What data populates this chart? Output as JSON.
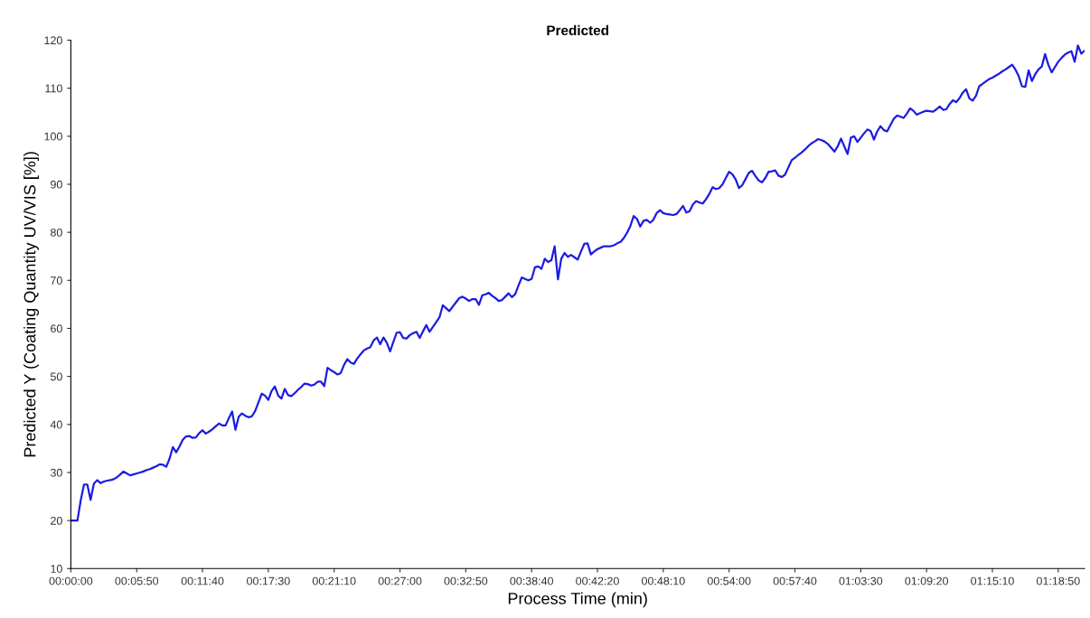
{
  "chart_data": {
    "type": "line",
    "title": "Predicted",
    "xlabel": "Process Time (min)",
    "ylabel": "Predicted Y (Coating Quantity UV/VIS [%])",
    "ylim": [
      10,
      120
    ],
    "yticks": [
      10,
      20,
      30,
      40,
      50,
      60,
      70,
      80,
      90,
      100,
      110,
      120
    ],
    "marker": "none",
    "line_style": "solid",
    "categories": [
      "00:00:00",
      null,
      null,
      null,
      null,
      null,
      null,
      null,
      null,
      null,
      null,
      null,
      null,
      null,
      null,
      null,
      null,
      null,
      null,
      null,
      "00:05:50",
      null,
      null,
      null,
      null,
      null,
      null,
      null,
      null,
      null,
      null,
      null,
      null,
      null,
      null,
      null,
      null,
      null,
      null,
      null,
      "00:11:40",
      null,
      null,
      null,
      null,
      null,
      null,
      null,
      null,
      null,
      null,
      null,
      null,
      null,
      null,
      null,
      null,
      null,
      null,
      null,
      "00:17:30",
      null,
      null,
      null,
      null,
      null,
      null,
      null,
      null,
      null,
      null,
      null,
      null,
      null,
      null,
      null,
      null,
      null,
      null,
      null,
      "00:21:10",
      null,
      null,
      null,
      null,
      null,
      null,
      null,
      null,
      null,
      null,
      null,
      null,
      null,
      null,
      null,
      null,
      null,
      null,
      null,
      "00:27:00",
      null,
      null,
      null,
      null,
      null,
      null,
      null,
      null,
      null,
      null,
      null,
      null,
      null,
      null,
      null,
      null,
      null,
      null,
      null,
      "00:32:50",
      null,
      null,
      null,
      null,
      null,
      null,
      null,
      null,
      null,
      null,
      null,
      null,
      null,
      null,
      null,
      null,
      null,
      null,
      null,
      "00:38:40",
      null,
      null,
      null,
      null,
      null,
      null,
      null,
      null,
      null,
      null,
      null,
      null,
      null,
      null,
      null,
      null,
      null,
      null,
      null,
      "00:42:20",
      null,
      null,
      null,
      null,
      null,
      null,
      null,
      null,
      null,
      null,
      null,
      null,
      null,
      null,
      null,
      null,
      null,
      null,
      null,
      "00:48:10",
      null,
      null,
      null,
      null,
      null,
      null,
      null,
      null,
      null,
      null,
      null,
      null,
      null,
      null,
      null,
      null,
      null,
      null,
      null,
      "00:54:00",
      null,
      null,
      null,
      null,
      null,
      null,
      null,
      null,
      null,
      null,
      null,
      null,
      null,
      null,
      null,
      null,
      null,
      null,
      null,
      "00:57:40",
      null,
      null,
      null,
      null,
      null,
      null,
      null,
      null,
      null,
      null,
      null,
      null,
      null,
      null,
      null,
      null,
      null,
      null,
      null,
      "01:03:30",
      null,
      null,
      null,
      null,
      null,
      null,
      null,
      null,
      null,
      null,
      null,
      null,
      null,
      null,
      null,
      null,
      null,
      null,
      null,
      "01:09:20",
      null,
      null,
      null,
      null,
      null,
      null,
      null,
      null,
      null,
      null,
      null,
      null,
      null,
      null,
      null,
      null,
      null,
      null,
      null,
      "01:15:10",
      null,
      null,
      null,
      null,
      null,
      null,
      null,
      null,
      null,
      null,
      null,
      null,
      null,
      null,
      null,
      null,
      null,
      null,
      null,
      "01:18:50",
      null,
      null,
      null,
      null,
      null,
      null,
      null,
      null
    ],
    "series": [
      {
        "color": "#1c1ce0",
        "values": [
          20.0,
          20.0,
          20.0,
          24.2,
          27.5,
          27.5,
          24.3,
          27.7,
          28.4,
          27.8,
          28.1,
          28.3,
          28.4,
          28.6,
          29.0,
          29.6,
          30.2,
          29.8,
          29.4,
          29.6,
          29.8,
          30.0,
          30.2,
          30.5,
          30.7,
          31.0,
          31.3,
          31.7,
          31.6,
          31.2,
          32.9,
          35.3,
          34.2,
          35.4,
          36.8,
          37.5,
          37.6,
          37.2,
          37.3,
          38.2,
          38.8,
          38.1,
          38.5,
          39.0,
          39.6,
          40.2,
          39.8,
          39.8,
          41.3,
          42.7,
          38.9,
          41.6,
          42.3,
          41.8,
          41.5,
          41.7,
          42.8,
          44.6,
          46.4,
          46.0,
          45.1,
          47.0,
          47.9,
          46.0,
          45.4,
          47.4,
          46.1,
          45.9,
          46.5,
          47.2,
          47.8,
          48.5,
          48.4,
          48.1,
          48.3,
          48.9,
          48.9,
          48.0,
          51.8,
          51.3,
          50.9,
          50.4,
          50.7,
          52.4,
          53.6,
          52.9,
          52.6,
          53.7,
          54.6,
          55.4,
          55.8,
          56.1,
          57.5,
          58.1,
          56.7,
          58.1,
          57.0,
          55.2,
          57.2,
          59.1,
          59.2,
          58.0,
          57.9,
          58.6,
          59.0,
          59.3,
          58.0,
          59.4,
          60.7,
          59.3,
          60.3,
          61.3,
          62.3,
          64.8,
          64.2,
          63.6,
          64.5,
          65.4,
          66.3,
          66.6,
          66.2,
          65.7,
          66.1,
          66.1,
          64.9,
          66.9,
          67.1,
          67.4,
          66.8,
          66.3,
          65.7,
          65.9,
          66.6,
          67.3,
          66.5,
          67.1,
          68.9,
          70.6,
          70.3,
          70.0,
          70.3,
          72.7,
          72.9,
          72.4,
          74.5,
          73.8,
          74.2,
          77.1,
          70.2,
          74.5,
          75.7,
          74.9,
          75.3,
          74.8,
          74.3,
          76.0,
          77.6,
          77.7,
          75.4,
          76.0,
          76.5,
          76.8,
          77.1,
          77.1,
          77.1,
          77.3,
          77.7,
          78.0,
          78.8,
          79.9,
          81.3,
          83.4,
          82.8,
          81.2,
          82.4,
          82.6,
          82.0,
          82.6,
          84.0,
          84.6,
          84.0,
          83.8,
          83.7,
          83.6,
          83.8,
          84.6,
          85.5,
          84.1,
          84.4,
          85.8,
          86.5,
          86.2,
          86.0,
          86.9,
          88.0,
          89.4,
          89.0,
          89.2,
          90.0,
          91.3,
          92.6,
          92.1,
          91.0,
          89.2,
          89.8,
          91.1,
          92.4,
          92.8,
          91.7,
          90.8,
          90.4,
          91.3,
          92.6,
          92.7,
          92.9,
          91.8,
          91.5,
          92.0,
          93.5,
          95.0,
          95.5,
          96.1,
          96.6,
          97.2,
          97.9,
          98.5,
          98.9,
          99.4,
          99.2,
          98.9,
          98.4,
          97.6,
          96.8,
          97.9,
          99.5,
          97.9,
          96.3,
          99.7,
          100.0,
          98.8,
          99.7,
          100.6,
          101.4,
          101.1,
          99.3,
          101.0,
          102.1,
          101.3,
          101.0,
          102.3,
          103.6,
          104.3,
          104.1,
          103.8,
          104.7,
          105.8,
          105.3,
          104.5,
          104.8,
          105.1,
          105.3,
          105.2,
          105.1,
          105.6,
          106.2,
          105.5,
          105.6,
          106.7,
          107.5,
          107.1,
          107.9,
          109.1,
          109.8,
          107.9,
          107.4,
          108.4,
          110.4,
          110.9,
          111.4,
          111.9,
          112.2,
          112.6,
          113.0,
          113.5,
          113.9,
          114.4,
          114.9,
          113.9,
          112.5,
          110.4,
          110.3,
          113.7,
          111.5,
          112.9,
          113.9,
          114.5,
          117.1,
          114.9,
          113.3,
          114.4,
          115.5,
          116.3,
          117.0,
          117.4,
          117.7,
          115.5,
          118.9,
          117.2,
          117.8
        ]
      }
    ]
  }
}
